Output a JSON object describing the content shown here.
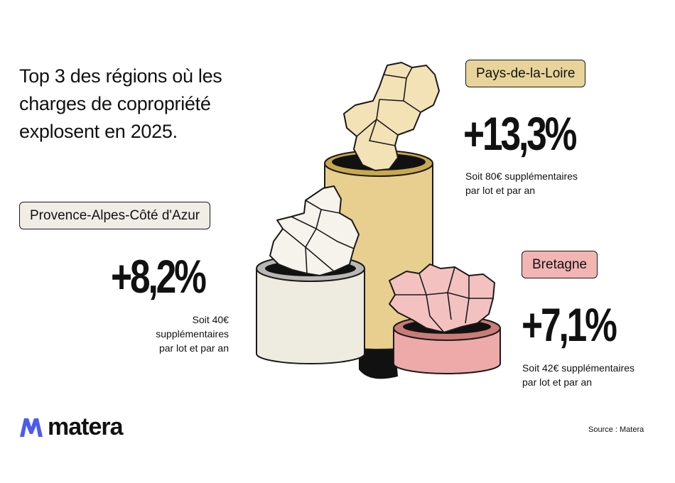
{
  "title": "Top 3 des régions où les charges de copropriété explosent en 2025.",
  "chart_data": {
    "type": "bar",
    "categories": [
      "Pays-de-la-Loire",
      "Provence-Alpes-Côté d'Azur",
      "Bretagne"
    ],
    "values": [
      13.3,
      8.2,
      7.1
    ],
    "series": [
      {
        "values": [
          13.3,
          8.2,
          7.1
        ]
      }
    ],
    "value_labels": [
      "+13,3%",
      "+8,2%",
      "+7,1%"
    ],
    "amounts_eur": [
      80,
      40,
      42
    ],
    "captions": [
      {
        "line1": "Soit 80€ supplémentaires",
        "line2": "par lot et par an"
      },
      {
        "line1": "Soit 40€ supplémentaires",
        "line2": "par lot et par an"
      },
      {
        "line1": "Soit 42€ supplémentaires",
        "line2": "par lot et par an"
      }
    ],
    "colors": [
      "#e8cf8f",
      "#eeebe1",
      "#eeaaa8"
    ]
  },
  "brand": {
    "name": "matera",
    "icon": "matera-logo-icon",
    "color": "#4b5bf0"
  },
  "source": "Source : Matera"
}
